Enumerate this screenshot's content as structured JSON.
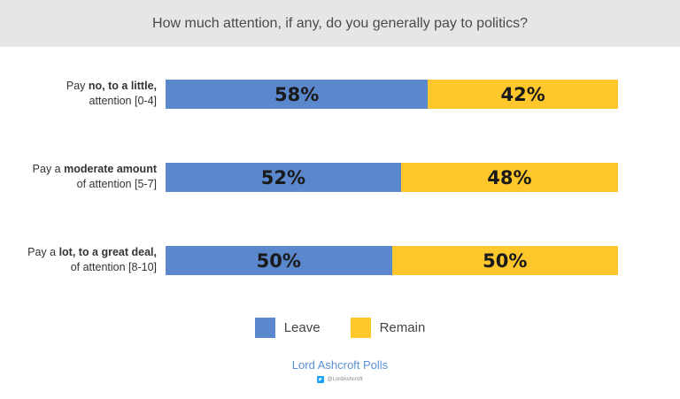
{
  "chart_data": {
    "type": "bar",
    "stacked": true,
    "orientation": "horizontal",
    "title": "How much attention, if any, do you generally pay to politics?",
    "categories": [
      {
        "pre": "Pay ",
        "bold": "no, to a little,",
        "post": "",
        "line2": "attention [0-4]"
      },
      {
        "pre": "Pay a ",
        "bold": "moderate amount",
        "post": "",
        "line2": "of attention [5-7]"
      },
      {
        "pre": "Pay a ",
        "bold": "lot, to a great deal,",
        "post": "",
        "line2": "of attention [8-10]"
      }
    ],
    "series": [
      {
        "name": "Leave",
        "color": "#5b87cc",
        "values": [
          58,
          52,
          50
        ],
        "labels": [
          "58%",
          "52%",
          "50%"
        ]
      },
      {
        "name": "Remain",
        "color": "#ffc72c",
        "values": [
          42,
          48,
          50
        ],
        "labels": [
          "42%",
          "48%",
          "50%"
        ]
      }
    ],
    "xlim": [
      0,
      100
    ],
    "legend": "bottom-center",
    "grid": false
  },
  "brand": "Lord Ashcroft Polls",
  "handle": "@LordAshcroft",
  "icons": {
    "social": "twitter-icon"
  }
}
